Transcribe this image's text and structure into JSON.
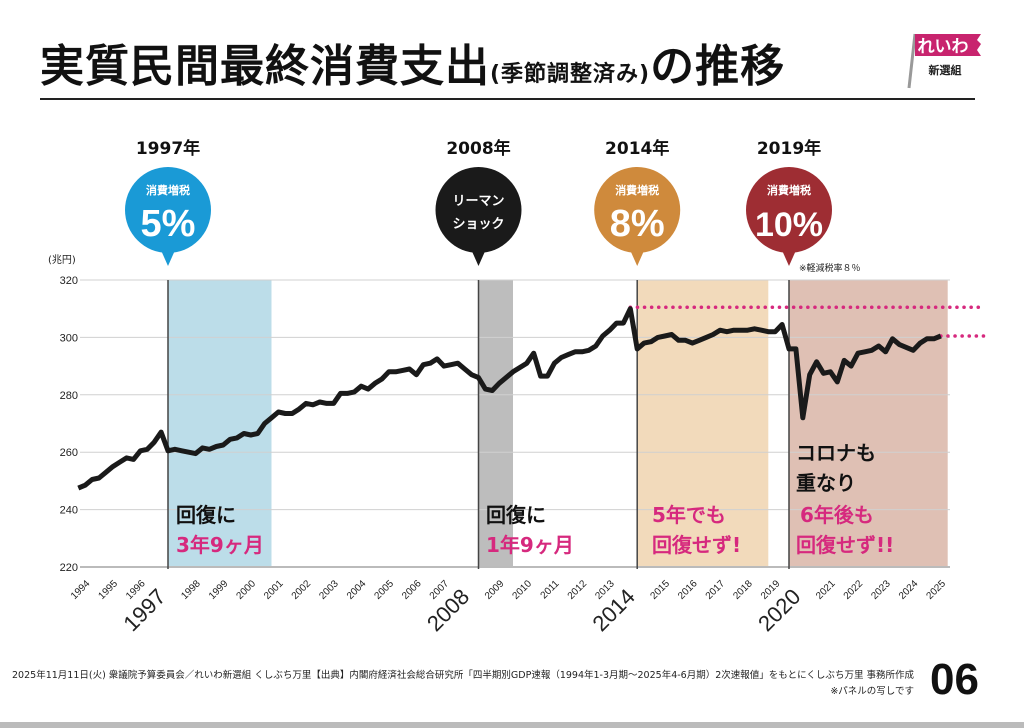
{
  "header": {
    "title_main": "実質民間最終消費支出",
    "title_sub": "(季節調整済み)",
    "title_tail": "の推移",
    "logo_text": "れいわ新選組"
  },
  "footer": {
    "line1": "2025年11月11日(火) 衆議院予算委員会／れいわ新選組 くしぶち万里【出典】内閣府経済社会総合研究所「四半期別GDP速報（1994年1-3月期〜2025年4-6月期）2次速報値」をもとにくしぶち万里 事務所作成",
    "line2": "※パネルの写しです",
    "page_number": "06"
  },
  "colors": {
    "line": "#1a1a1a",
    "accent_pink": "#d6297e",
    "blue": "#1a9ad6",
    "blue_band": "#bcdde9",
    "gray_band": "#bdbdbd",
    "orange": "#cf8a3c",
    "orange_band": "#f2dabb",
    "darkred": "#9e2d33",
    "darkred_band": "#dfc0b4"
  },
  "chart_data": {
    "type": "line",
    "ylabel": "(兆円)",
    "ylim": [
      220,
      320
    ],
    "yticks": [
      220,
      240,
      260,
      280,
      300,
      320
    ],
    "grid": true,
    "x_start": "1994Q1",
    "frequency": "quarterly",
    "year_labels": [
      "1994",
      "1995",
      "1996",
      "1997",
      "1998",
      "1999",
      "2000",
      "2001",
      "2002",
      "2003",
      "2004",
      "2005",
      "2006",
      "2007",
      "2008",
      "2009",
      "2010",
      "2011",
      "2012",
      "2013",
      "2014",
      "2015",
      "2016",
      "2017",
      "2018",
      "2019",
      "2020",
      "2021",
      "2022",
      "2023",
      "2024",
      "2025"
    ],
    "emphasized_years": [
      "1997",
      "2008",
      "2014",
      "2020"
    ],
    "values": [
      247.5,
      248.5,
      250.5,
      251,
      253,
      255,
      256.5,
      258,
      257.5,
      260.5,
      261,
      263.5,
      267,
      260.5,
      261,
      260.5,
      260,
      259.5,
      261.5,
      261,
      262,
      262.5,
      264.5,
      265,
      266.5,
      266,
      266.5,
      270,
      272,
      274,
      273.5,
      273.5,
      275,
      277,
      276.5,
      277.5,
      277,
      277,
      280.5,
      280.5,
      281,
      283,
      282,
      284,
      285.5,
      288,
      288,
      288.5,
      289,
      287,
      290.5,
      291,
      292.5,
      290,
      290.5,
      291,
      289,
      287,
      286,
      282,
      281.5,
      284,
      286,
      288,
      289.5,
      291,
      294.5,
      286.5,
      286.5,
      291,
      293,
      294,
      295,
      295,
      295.5,
      297,
      300.5,
      302.5,
      305,
      305,
      310,
      296,
      298,
      298.5,
      300,
      300.5,
      301,
      299,
      299,
      298,
      299,
      300,
      301,
      302.5,
      302,
      302.5,
      302.5,
      302.5,
      303,
      302.5,
      302,
      302,
      304.5,
      296,
      296,
      272,
      287,
      291.5,
      287.5,
      288,
      284.5,
      292,
      290,
      294.5,
      295,
      295.5,
      297,
      295,
      299.5,
      297.5,
      296.5,
      295.5,
      298,
      299.5,
      299.5,
      300.5
    ],
    "reference_lines": [
      {
        "value": 310.5,
        "from": "2014Q1"
      },
      {
        "value": 300.5,
        "from": "2025Q2"
      }
    ],
    "bands": [
      {
        "from": "1997Q2",
        "to": "2001Q1",
        "color_key": "blue_band",
        "text1": "回復に",
        "text2": "3年9ヶ月"
      },
      {
        "from": "2008Q3",
        "to": "2009Q4",
        "color_key": "gray_band"
      },
      {
        "from": "2014Q2",
        "to": "2019Q1",
        "color_key": "orange_band",
        "text1": "5年でも",
        "text2": "回復せず!"
      },
      {
        "from": "2019Q4",
        "to": "2025Q3",
        "color_key": "darkred_band",
        "text1": "コロナも",
        "text1b": "重なり",
        "text2": "6年後も",
        "text2b": "回復せず!!"
      }
    ],
    "extra_band_texts": {
      "gray_text1": "回復に",
      "gray_text2": "1年9ヶ月"
    },
    "events": [
      {
        "year_label": "1997年",
        "at": "1997Q2",
        "line1": "消費増税",
        "line2": "5%",
        "color_key": "blue"
      },
      {
        "year_label": "2008年",
        "at": "2008Q3",
        "line1": "リーマン",
        "line2": "ショック",
        "color_key": "line"
      },
      {
        "year_label": "2014年",
        "at": "2014Q2",
        "line1": "消費増税",
        "line2": "8%",
        "color_key": "orange"
      },
      {
        "year_label": "2019年",
        "at": "2019Q4",
        "line1": "消費増税",
        "line2": "10%",
        "color_key": "darkred",
        "note": "※軽減税率８％"
      }
    ]
  }
}
